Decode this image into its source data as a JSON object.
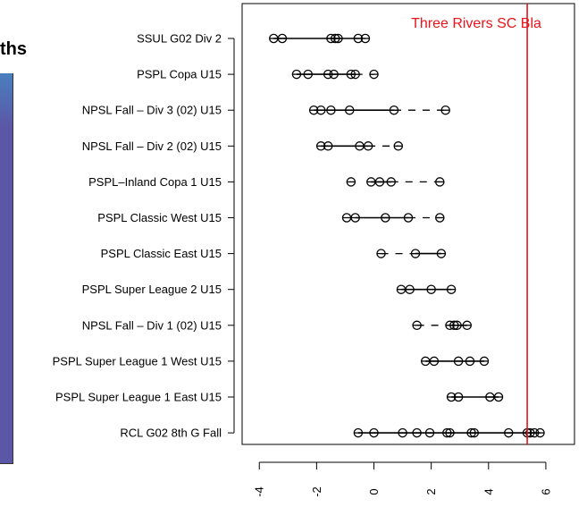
{
  "background": {
    "partial_title": "ths",
    "panel_color": "#5b57a6"
  },
  "chart_data": {
    "type": "dot-range",
    "title": "",
    "xlabel": "",
    "ylabel": "",
    "xlim": [
      -4.6,
      7.0
    ],
    "x_ticks": [
      -4,
      -2,
      0,
      2,
      4,
      6
    ],
    "x_tick_labels": [
      "-4",
      "-2",
      "0",
      "2",
      "4",
      "6"
    ],
    "reference_line": {
      "x": 5.35,
      "label": "Three Rivers SC Bla",
      "color": "#e8141b"
    },
    "categories": [
      {
        "label": "SSUL G02 Div 2",
        "points": [
          -3.5,
          -3.2,
          -1.5,
          -1.35,
          -1.25,
          -0.55,
          -0.3
        ],
        "solid": [
          -3.5,
          -0.55
        ],
        "dashed": [
          -0.55,
          -0.3
        ]
      },
      {
        "label": "PSPL Copa U15",
        "points": [
          -2.7,
          -2.3,
          -1.6,
          -1.4,
          -0.8,
          -0.65,
          0.0
        ],
        "solid": [
          -2.7,
          -0.65
        ],
        "dashed": [
          -0.65,
          0.0
        ]
      },
      {
        "label": "NPSL Fall – Div 3 (02) U15",
        "points": [
          -2.1,
          -1.85,
          -1.5,
          -0.85,
          0.7,
          2.5
        ],
        "solid": [
          -2.1,
          0.7
        ],
        "dashed": [
          0.7,
          2.5
        ]
      },
      {
        "label": "NPSL Fall – Div 2 (02) U15",
        "points": [
          -1.85,
          -1.6,
          -0.5,
          -0.2,
          0.85
        ],
        "solid": [
          -1.85,
          -0.2
        ],
        "dashed": [
          -0.2,
          0.85
        ]
      },
      {
        "label": "PSPL–Inland Copa 1 U15",
        "points": [
          -0.8,
          -0.1,
          0.2,
          0.6,
          2.3
        ],
        "solid": [
          -0.1,
          0.6
        ],
        "dashed": [
          0.6,
          2.3
        ]
      },
      {
        "label": "PSPL Classic West U15",
        "points": [
          -0.95,
          -0.65,
          0.4,
          1.2,
          2.3
        ],
        "solid": [
          -0.65,
          1.2
        ],
        "dashed": [
          1.2,
          2.3
        ]
      },
      {
        "label": "PSPL Classic East U15",
        "points": [
          0.25,
          1.45,
          2.35
        ],
        "solid": [
          1.45,
          2.35
        ],
        "dashed": [
          0.25,
          1.45
        ]
      },
      {
        "label": "PSPL Super League 2 U15",
        "points": [
          0.95,
          1.25,
          2.0,
          2.7
        ],
        "solid": [
          0.95,
          2.7
        ],
        "dashed": [
          2.7,
          2.7
        ]
      },
      {
        "label": "NPSL Fall – Div 1 (02) U15",
        "points": [
          1.5,
          2.65,
          2.8,
          2.9,
          3.25
        ],
        "solid": [
          2.65,
          3.25
        ],
        "dashed": [
          1.5,
          2.65
        ]
      },
      {
        "label": "PSPL Super League 1 West U15",
        "points": [
          1.8,
          2.1,
          2.95,
          3.35,
          3.85
        ],
        "solid": [
          1.8,
          3.85
        ],
        "dashed": [
          3.85,
          3.85
        ]
      },
      {
        "label": "PSPL Super League 1 East U15",
        "points": [
          2.7,
          2.95,
          4.05,
          4.35
        ],
        "solid": [
          2.7,
          4.35
        ],
        "dashed": [
          4.35,
          4.35
        ]
      },
      {
        "label": "RCL G02 8th G Fall",
        "points": [
          -0.55,
          0.0,
          1.0,
          1.5,
          1.95,
          2.55,
          2.65,
          3.4,
          3.5,
          4.7,
          5.35,
          5.45,
          5.6,
          5.8
        ],
        "solid": [
          -0.55,
          5.8
        ],
        "dashed": [
          5.8,
          5.8
        ]
      }
    ]
  }
}
